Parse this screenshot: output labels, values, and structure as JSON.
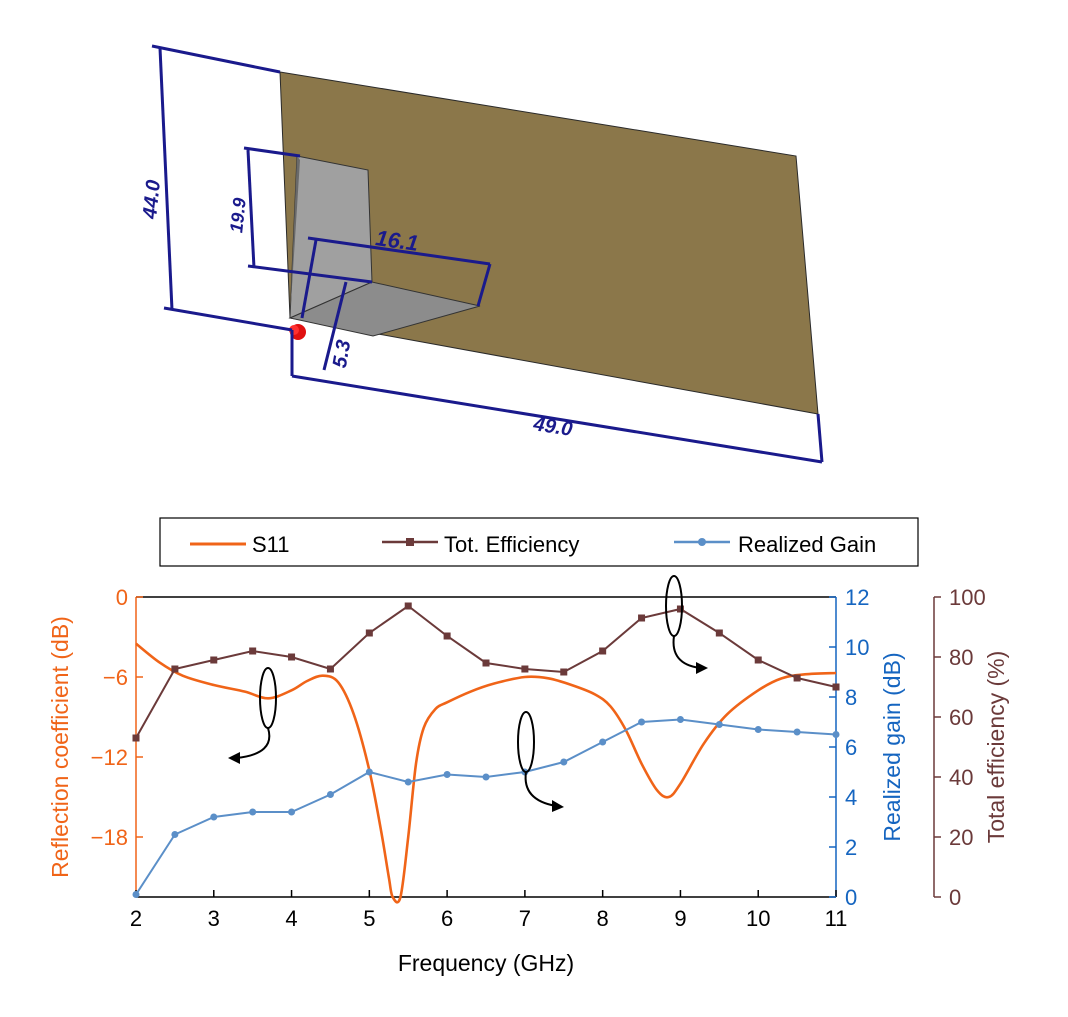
{
  "colors": {
    "s11": "#f06418",
    "efficiency": "#6b3a3a",
    "gain": "#5b8fc8",
    "gain_axis": "#1565c0",
    "dimension": "#1a1a8c",
    "ground_plane": "#8b774a",
    "patch": "#9a9a9a",
    "feed": "#e01010"
  },
  "antenna": {
    "dimensions": {
      "height": "44.0",
      "patch_height": "19.9",
      "patch_width": "16.1",
      "offset": "5.3",
      "length": "49.0"
    }
  },
  "chart_data": {
    "type": "line",
    "xlabel": "Frequency (GHz)",
    "ylabel_left": "Reflection coefficient (dB)",
    "ylabel_right1": "Realized gain (dB)",
    "ylabel_right2": "Total efficiency (%)",
    "xlim": [
      2,
      11
    ],
    "xticks": [
      "2",
      "3",
      "4",
      "5",
      "6",
      "7",
      "8",
      "9",
      "10",
      "11"
    ],
    "y_left": {
      "lim": [
        -22.5,
        0
      ],
      "ticks": [
        0,
        -6,
        -12,
        -18
      ],
      "tick_labels": [
        "0",
        "−6",
        "−12",
        "−18"
      ]
    },
    "y_gain": {
      "lim": [
        0,
        12
      ],
      "ticks": [
        "0",
        "2",
        "4",
        "6",
        "8",
        "10",
        "12"
      ]
    },
    "y_eff": {
      "lim": [
        0,
        100
      ],
      "ticks": [
        "0",
        "20",
        "40",
        "60",
        "80",
        "100"
      ]
    },
    "legend": {
      "placement": "top",
      "entries": [
        "S11",
        "Tot. Efficiency",
        "Realized Gain"
      ]
    },
    "series": [
      {
        "name": "S11",
        "axis": "left",
        "x": [
          2,
          2.3,
          2.6,
          3.0,
          3.4,
          3.7,
          4.0,
          4.2,
          4.4,
          4.6,
          4.8,
          5.0,
          5.15,
          5.25,
          5.3,
          5.4,
          5.5,
          5.6,
          5.7,
          5.85,
          6.0,
          6.3,
          6.6,
          7.0,
          7.3,
          7.6,
          7.9,
          8.1,
          8.3,
          8.5,
          8.7,
          8.85,
          9.0,
          9.3,
          9.6,
          10.0,
          10.3,
          10.6,
          11.0
        ],
        "y": [
          -3.5,
          -4.9,
          -5.9,
          -6.6,
          -7.1,
          -7.6,
          -7.0,
          -6.3,
          -5.9,
          -6.4,
          -8.8,
          -13.0,
          -17.5,
          -21.0,
          -22.5,
          -22.5,
          -18.0,
          -12.5,
          -9.8,
          -8.4,
          -7.9,
          -7.1,
          -6.5,
          -6.0,
          -6.1,
          -6.6,
          -7.3,
          -8.2,
          -10.0,
          -12.5,
          -14.5,
          -15.0,
          -14.0,
          -11.0,
          -8.8,
          -7.0,
          -6.1,
          -5.8,
          -5.7
        ]
      },
      {
        "name": "Tot. Efficiency",
        "axis": "efficiency",
        "x": [
          2,
          2.5,
          3,
          3.5,
          4,
          4.5,
          5,
          5.5,
          6,
          6.5,
          7,
          7.5,
          8,
          8.5,
          9,
          9.5,
          10,
          10.5,
          11
        ],
        "y": [
          53,
          76,
          79,
          82,
          80,
          76,
          88,
          97,
          87,
          78,
          76,
          75,
          82,
          93,
          96,
          88,
          79,
          73,
          70
        ]
      },
      {
        "name": "Realized Gain",
        "axis": "gain",
        "x": [
          2,
          2.5,
          3,
          3.5,
          4,
          4.5,
          5,
          5.5,
          6,
          6.5,
          7,
          7.5,
          8,
          8.5,
          9,
          9.5,
          10,
          10.5,
          11
        ],
        "y": [
          0.1,
          2.5,
          3.2,
          3.4,
          3.4,
          4.1,
          5.0,
          4.6,
          4.9,
          4.8,
          5.0,
          5.4,
          6.2,
          7.0,
          7.1,
          6.9,
          6.7,
          6.6,
          6.5
        ]
      }
    ]
  }
}
